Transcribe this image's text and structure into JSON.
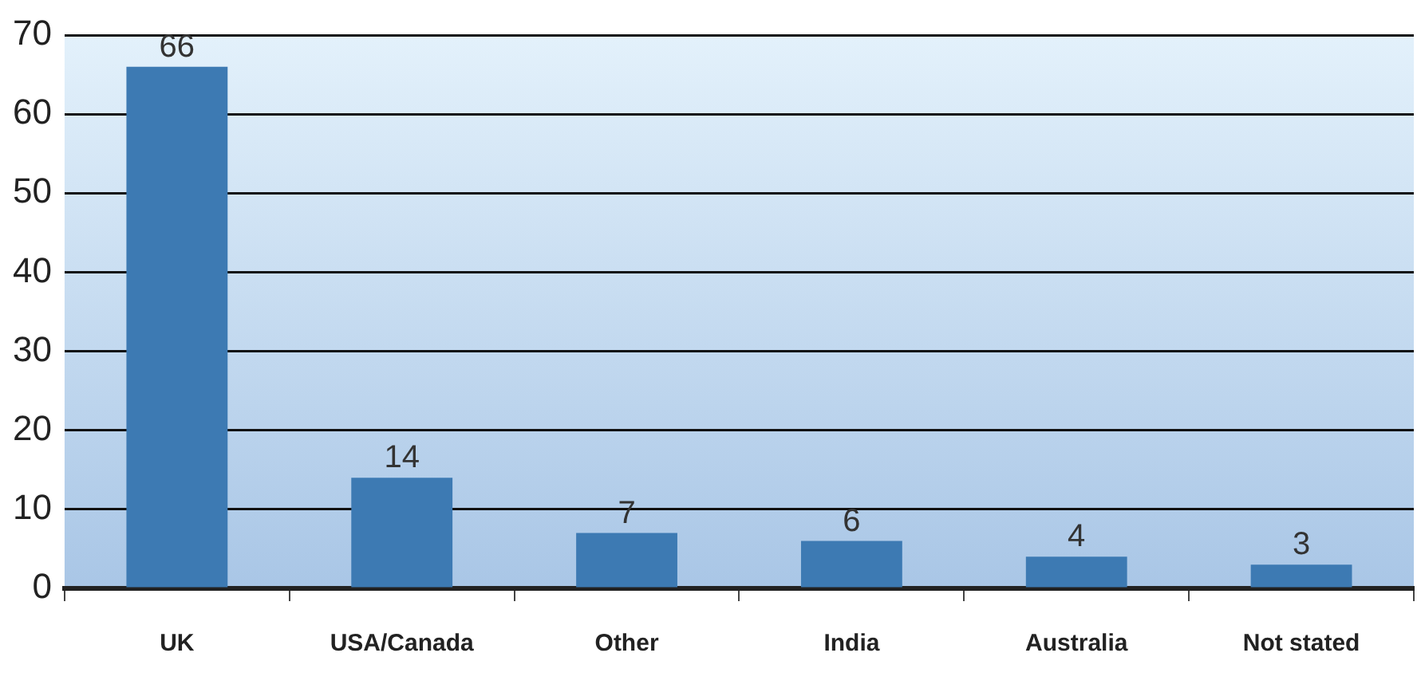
{
  "chart_data": {
    "type": "bar",
    "categories": [
      "UK",
      "USA/Canada",
      "Other",
      "India",
      "Australia",
      "Not stated"
    ],
    "values": [
      66,
      14,
      7,
      6,
      4,
      3
    ],
    "color": "#3d7ab3",
    "ylim": [
      0,
      70
    ],
    "yticks": [
      0,
      10,
      20,
      30,
      40,
      50,
      60,
      70
    ],
    "grid": "y",
    "data_labels": true,
    "legend": false
  }
}
